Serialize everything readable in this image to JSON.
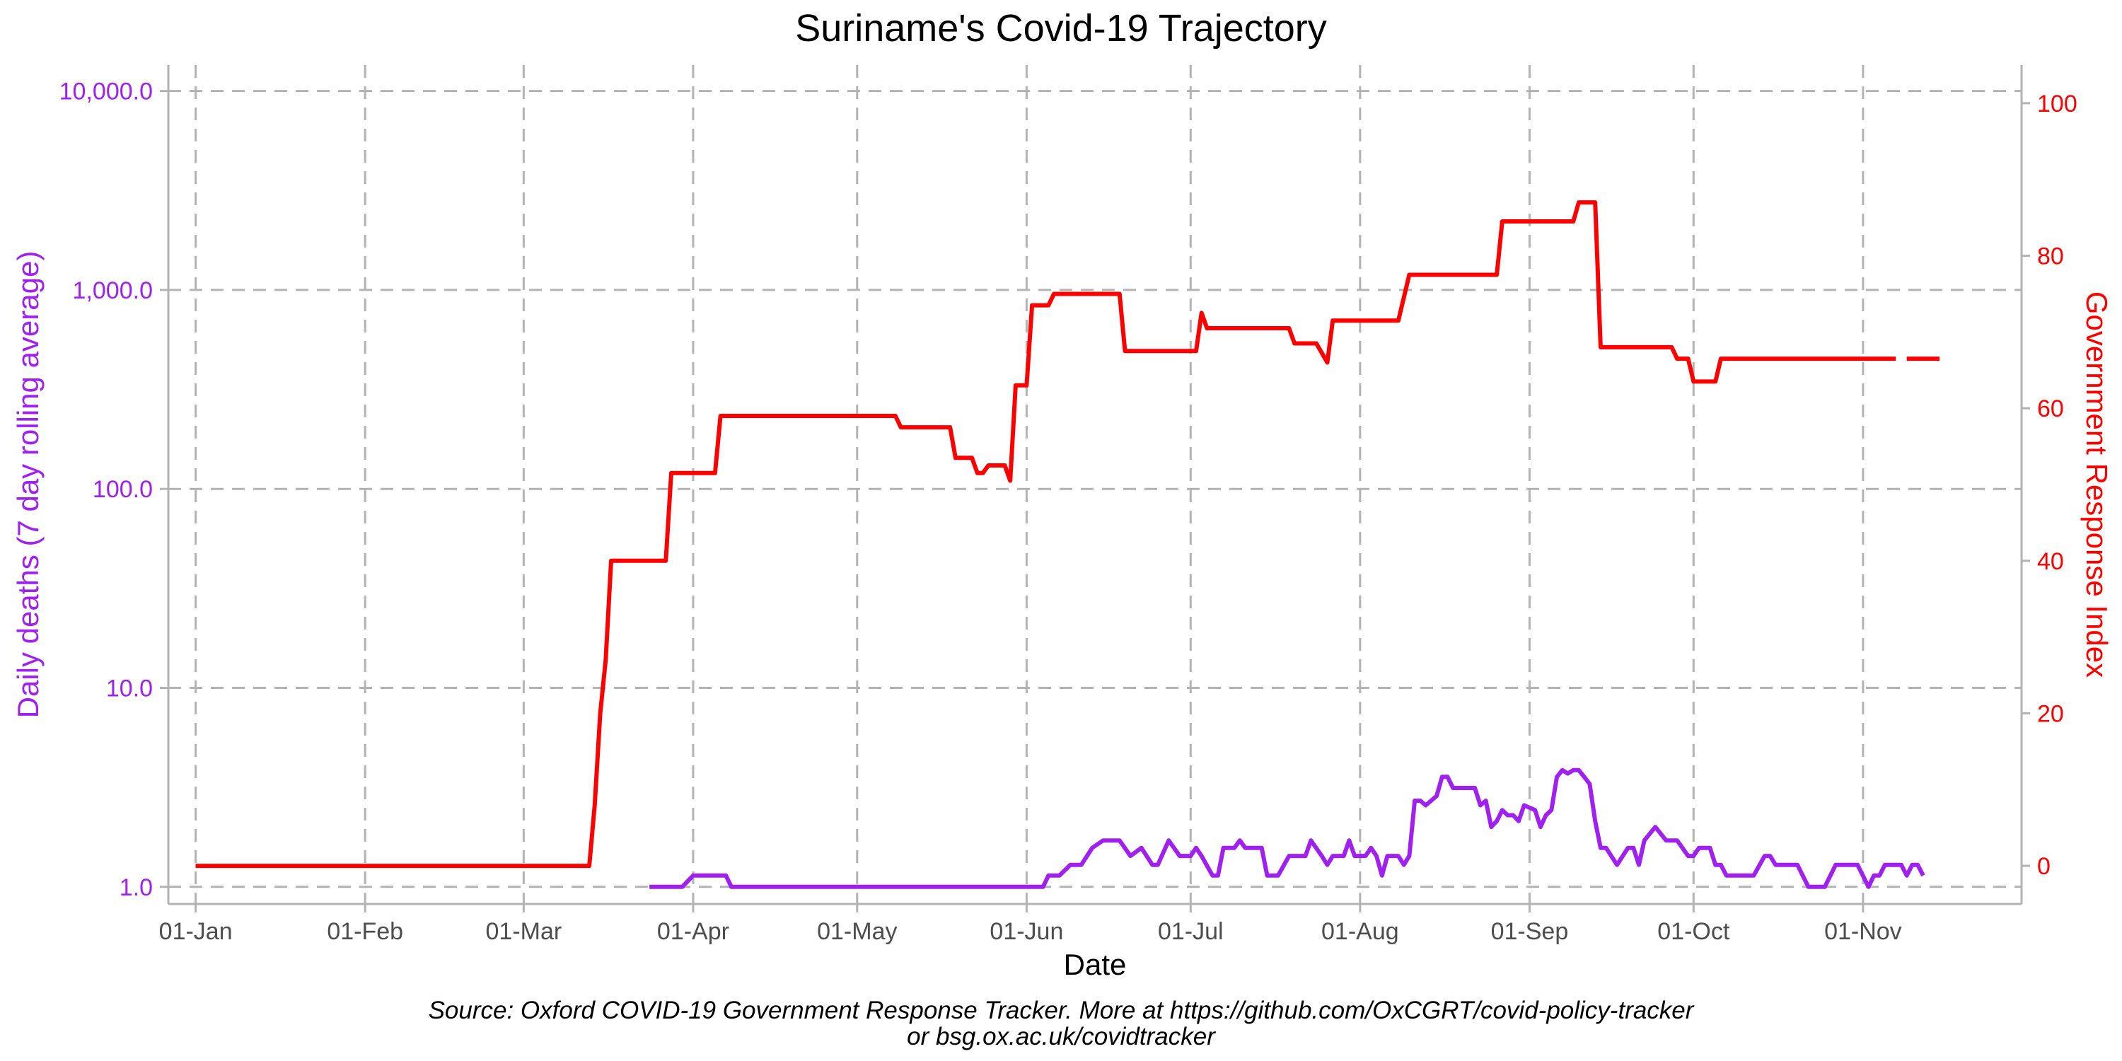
{
  "colors": {
    "deaths": "#a020f0",
    "response": "#ff0000",
    "grid": "#b3b3b3",
    "xtick": "#4d4d4d"
  },
  "chart_data": {
    "type": "line",
    "title": "Suriname's Covid-19 Trajectory",
    "xlabel": "Date",
    "ylabel_left": "Daily deaths (7 day rolling average)",
    "ylabel_right": "Government Response Index",
    "caption_line1": "Source: Oxford COVID-19 Government Response Tracker. More at https://github.com/OxCGRT/covid-policy-tracker",
    "caption_line2": "or bsg.ox.ac.uk/covidtracker",
    "x_range": [
      "2019-12-27",
      "2020-11-30"
    ],
    "x_ticks": [
      {
        "date": "2020-01-01",
        "label": "01-Jan"
      },
      {
        "date": "2020-02-01",
        "label": "01-Feb"
      },
      {
        "date": "2020-03-01",
        "label": "01-Mar"
      },
      {
        "date": "2020-04-01",
        "label": "01-Apr"
      },
      {
        "date": "2020-05-01",
        "label": "01-May"
      },
      {
        "date": "2020-06-01",
        "label": "01-Jun"
      },
      {
        "date": "2020-07-01",
        "label": "01-Jul"
      },
      {
        "date": "2020-08-01",
        "label": "01-Aug"
      },
      {
        "date": "2020-09-01",
        "label": "01-Sep"
      },
      {
        "date": "2020-10-01",
        "label": "01-Oct"
      },
      {
        "date": "2020-11-01",
        "label": "01-Nov"
      }
    ],
    "y_left": {
      "scale": "log10",
      "range": [
        0.82,
        13500
      ],
      "ticks": [
        {
          "value": 1,
          "label": "1.0"
        },
        {
          "value": 10,
          "label": "10.0"
        },
        {
          "value": 100,
          "label": "100.0"
        },
        {
          "value": 1000,
          "label": "1,000.0"
        },
        {
          "value": 10000,
          "label": "10,000.0"
        }
      ]
    },
    "y_right": {
      "scale": "linear",
      "range": [
        -5,
        105
      ],
      "ticks": [
        {
          "value": 0,
          "label": "0"
        },
        {
          "value": 20,
          "label": "20"
        },
        {
          "value": 40,
          "label": "40"
        },
        {
          "value": 60,
          "label": "60"
        },
        {
          "value": 80,
          "label": "80"
        },
        {
          "value": 100,
          "label": "100"
        }
      ]
    },
    "grid": true,
    "series": [
      {
        "key": "response",
        "axis": "right",
        "segments": [
          [
            [
              "2020-01-01",
              0
            ],
            [
              "2020-03-13",
              0
            ],
            [
              "2020-03-14",
              8
            ],
            [
              "2020-03-15",
              20
            ],
            [
              "2020-03-16",
              27
            ],
            [
              "2020-03-17",
              40
            ],
            [
              "2020-03-27",
              40
            ],
            [
              "2020-03-28",
              51.5
            ],
            [
              "2020-04-05",
              51.5
            ],
            [
              "2020-04-06",
              59
            ],
            [
              "2020-05-08",
              59
            ],
            [
              "2020-05-09",
              57.5
            ],
            [
              "2020-05-18",
              57.5
            ],
            [
              "2020-05-19",
              53.5
            ],
            [
              "2020-05-22",
              53.5
            ],
            [
              "2020-05-23",
              51.5
            ],
            [
              "2020-05-24",
              51.5
            ],
            [
              "2020-05-25",
              52.5
            ],
            [
              "2020-05-28",
              52.5
            ],
            [
              "2020-05-29",
              50.5
            ],
            [
              "2020-05-30",
              63
            ],
            [
              "2020-06-01",
              63
            ],
            [
              "2020-06-02",
              73.5
            ],
            [
              "2020-06-05",
              73.5
            ],
            [
              "2020-06-06",
              75
            ],
            [
              "2020-06-18",
              75
            ],
            [
              "2020-06-19",
              67.5
            ],
            [
              "2020-07-02",
              67.5
            ],
            [
              "2020-07-03",
              72.5
            ],
            [
              "2020-07-04",
              70.5
            ],
            [
              "2020-07-19",
              70.5
            ],
            [
              "2020-07-20",
              68.5
            ],
            [
              "2020-07-24",
              68.5
            ],
            [
              "2020-07-26",
              66
            ],
            [
              "2020-07-27",
              71.5
            ],
            [
              "2020-08-08",
              71.5
            ],
            [
              "2020-08-10",
              77.5
            ],
            [
              "2020-08-26",
              77.5
            ],
            [
              "2020-08-27",
              84.5
            ],
            [
              "2020-09-09",
              84.5
            ],
            [
              "2020-09-10",
              87
            ],
            [
              "2020-09-13",
              87
            ],
            [
              "2020-09-14",
              68
            ],
            [
              "2020-09-27",
              68
            ],
            [
              "2020-09-28",
              66.5
            ],
            [
              "2020-09-30",
              66.5
            ],
            [
              "2020-10-01",
              63.5
            ],
            [
              "2020-10-05",
              63.5
            ],
            [
              "2020-10-06",
              66.5
            ],
            [
              "2020-11-07",
              66.5
            ]
          ],
          [
            [
              "2020-11-09",
              66.5
            ],
            [
              "2020-11-15",
              66.5
            ]
          ]
        ]
      },
      {
        "key": "deaths",
        "axis": "left",
        "segments": [
          [
            [
              "2020-03-24",
              1.0
            ],
            [
              "2020-03-30",
              1.0
            ],
            [
              "2020-04-01",
              1.14
            ],
            [
              "2020-04-07",
              1.14
            ],
            [
              "2020-04-08",
              1.0
            ],
            [
              "2020-06-04",
              1.0
            ],
            [
              "2020-06-05",
              1.14
            ],
            [
              "2020-06-07",
              1.14
            ],
            [
              "2020-06-09",
              1.29
            ],
            [
              "2020-06-11",
              1.29
            ],
            [
              "2020-06-13",
              1.57
            ],
            [
              "2020-06-15",
              1.71
            ],
            [
              "2020-06-18",
              1.71
            ],
            [
              "2020-06-20",
              1.43
            ],
            [
              "2020-06-22",
              1.57
            ],
            [
              "2020-06-24",
              1.29
            ],
            [
              "2020-06-25",
              1.29
            ],
            [
              "2020-06-27",
              1.71
            ],
            [
              "2020-06-29",
              1.43
            ],
            [
              "2020-07-01",
              1.43
            ],
            [
              "2020-07-02",
              1.57
            ],
            [
              "2020-07-03",
              1.43
            ],
            [
              "2020-07-05",
              1.14
            ],
            [
              "2020-07-06",
              1.14
            ],
            [
              "2020-07-07",
              1.57
            ],
            [
              "2020-07-09",
              1.57
            ],
            [
              "2020-07-10",
              1.71
            ],
            [
              "2020-07-11",
              1.57
            ],
            [
              "2020-07-14",
              1.57
            ],
            [
              "2020-07-15",
              1.14
            ],
            [
              "2020-07-17",
              1.14
            ],
            [
              "2020-07-19",
              1.43
            ],
            [
              "2020-07-22",
              1.43
            ],
            [
              "2020-07-23",
              1.71
            ],
            [
              "2020-07-25",
              1.43
            ],
            [
              "2020-07-26",
              1.29
            ],
            [
              "2020-07-27",
              1.43
            ],
            [
              "2020-07-29",
              1.43
            ],
            [
              "2020-07-30",
              1.71
            ],
            [
              "2020-07-31",
              1.43
            ],
            [
              "2020-08-02",
              1.43
            ],
            [
              "2020-08-03",
              1.57
            ],
            [
              "2020-08-04",
              1.43
            ],
            [
              "2020-08-05",
              1.14
            ],
            [
              "2020-08-06",
              1.43
            ],
            [
              "2020-08-08",
              1.43
            ],
            [
              "2020-08-09",
              1.29
            ],
            [
              "2020-08-10",
              1.43
            ],
            [
              "2020-08-11",
              2.71
            ],
            [
              "2020-08-12",
              2.71
            ],
            [
              "2020-08-13",
              2.57
            ],
            [
              "2020-08-15",
              2.86
            ],
            [
              "2020-08-16",
              3.57
            ],
            [
              "2020-08-17",
              3.57
            ],
            [
              "2020-08-18",
              3.14
            ],
            [
              "2020-08-22",
              3.14
            ],
            [
              "2020-08-23",
              2.57
            ],
            [
              "2020-08-24",
              2.71
            ],
            [
              "2020-08-25",
              2.0
            ],
            [
              "2020-08-26",
              2.14
            ],
            [
              "2020-08-27",
              2.43
            ],
            [
              "2020-08-28",
              2.29
            ],
            [
              "2020-08-29",
              2.29
            ],
            [
              "2020-08-30",
              2.14
            ],
            [
              "2020-08-31",
              2.57
            ],
            [
              "2020-09-02",
              2.43
            ],
            [
              "2020-09-03",
              2.0
            ],
            [
              "2020-09-04",
              2.29
            ],
            [
              "2020-09-05",
              2.43
            ],
            [
              "2020-09-06",
              3.57
            ],
            [
              "2020-09-07",
              3.86
            ],
            [
              "2020-09-08",
              3.71
            ],
            [
              "2020-09-09",
              3.86
            ],
            [
              "2020-09-10",
              3.86
            ],
            [
              "2020-09-11",
              3.57
            ],
            [
              "2020-09-12",
              3.29
            ],
            [
              "2020-09-13",
              2.14
            ],
            [
              "2020-09-14",
              1.57
            ],
            [
              "2020-09-15",
              1.57
            ],
            [
              "2020-09-17",
              1.29
            ],
            [
              "2020-09-19",
              1.57
            ],
            [
              "2020-09-20",
              1.57
            ],
            [
              "2020-09-21",
              1.29
            ],
            [
              "2020-09-22",
              1.71
            ],
            [
              "2020-09-24",
              2.0
            ],
            [
              "2020-09-26",
              1.71
            ],
            [
              "2020-09-27",
              1.71
            ],
            [
              "2020-09-28",
              1.71
            ],
            [
              "2020-09-30",
              1.43
            ],
            [
              "2020-10-01",
              1.43
            ],
            [
              "2020-10-02",
              1.57
            ],
            [
              "2020-10-04",
              1.57
            ],
            [
              "2020-10-05",
              1.29
            ],
            [
              "2020-10-06",
              1.29
            ],
            [
              "2020-10-07",
              1.14
            ],
            [
              "2020-10-12",
              1.14
            ],
            [
              "2020-10-14",
              1.43
            ],
            [
              "2020-10-15",
              1.43
            ],
            [
              "2020-10-16",
              1.29
            ],
            [
              "2020-10-20",
              1.29
            ],
            [
              "2020-10-22",
              1.0
            ],
            [
              "2020-10-25",
              1.0
            ],
            [
              "2020-10-27",
              1.29
            ],
            [
              "2020-10-31",
              1.29
            ],
            [
              "2020-11-02",
              1.0
            ],
            [
              "2020-11-03",
              1.14
            ],
            [
              "2020-11-04",
              1.14
            ],
            [
              "2020-11-05",
              1.29
            ],
            [
              "2020-11-08",
              1.29
            ],
            [
              "2020-11-09",
              1.14
            ],
            [
              "2020-11-10",
              1.29
            ],
            [
              "2020-11-11",
              1.29
            ],
            [
              "2020-11-12",
              1.14
            ]
          ]
        ]
      }
    ]
  }
}
